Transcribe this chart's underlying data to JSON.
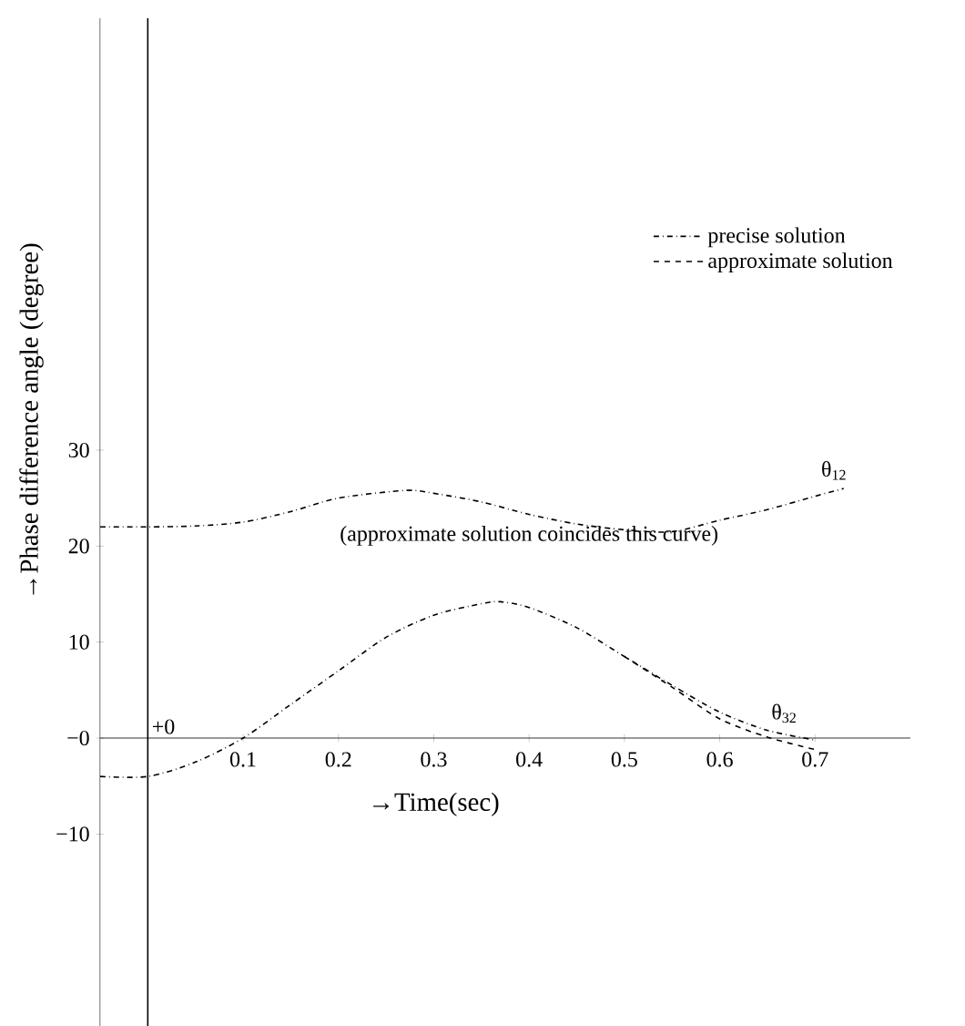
{
  "chart_data": {
    "type": "line",
    "xlabel": "→Time(sec)",
    "ylabel": "→Phase difference angle (degree)",
    "xlim": [
      -0.05,
      0.8
    ],
    "ylim": [
      -30,
      75
    ],
    "xticks": [
      0.1,
      0.2,
      0.3,
      0.4,
      0.5,
      0.6,
      0.7
    ],
    "yticks": [
      {
        "value": -10,
        "label": "−10"
      },
      {
        "value": 0,
        "label": "−0"
      },
      10,
      20,
      30
    ],
    "legend": "top right",
    "grid": false,
    "marker": "none",
    "series": [
      {
        "name": "precise solution",
        "color": "#000000",
        "line_style": "dashdot",
        "x": [
          -0.05,
          0,
          0.05,
          0.1,
          0.15,
          0.2,
          0.27,
          0.3,
          0.35,
          0.4,
          0.45,
          0.5,
          0.55,
          0.6,
          0.65,
          0.7,
          0.73
        ],
        "values": [
          22,
          22,
          22.1,
          22.5,
          23.6,
          25,
          25.8,
          25.5,
          24.6,
          23.3,
          22.3,
          21.7,
          21.5,
          22.7,
          23.8,
          25.2,
          26
        ]
      },
      {
        "color": "#000000",
        "line_style": "dashdot",
        "x": [
          -0.05,
          0,
          0.05,
          0.1,
          0.15,
          0.2,
          0.25,
          0.3,
          0.35,
          0.37,
          0.4,
          0.45,
          0.5,
          0.55,
          0.6,
          0.65,
          0.7
        ],
        "values": [
          -4,
          -4,
          -2.5,
          0,
          3.5,
          7,
          10.5,
          12.8,
          14,
          14.2,
          13.6,
          11.5,
          8.5,
          5.5,
          2.7,
          0.8,
          -0.2
        ]
      },
      {
        "name": "approximate solution",
        "color": "#000000",
        "line_style": "dashed",
        "x": [
          0.5,
          0.55,
          0.6,
          0.65,
          0.7
        ],
        "values": [
          8.5,
          5.3,
          2.0,
          0.1,
          -1.2
        ]
      }
    ],
    "ref_lines": [
      {
        "axis": "x",
        "value": 0,
        "color": "#000000",
        "line_style": "solid"
      }
    ],
    "annotations": [
      {
        "text": "θ$_{12}$",
        "x": 0.72,
        "y": 26.5
      },
      {
        "text": "θ$_{32}$",
        "x": 0.65,
        "y": 0.8
      },
      {
        "text": "(approximate solution coincides this curve)",
        "x": 0.4,
        "y": 23.3
      },
      {
        "text": "+0",
        "x": 0,
        "y": 0
      }
    ]
  }
}
